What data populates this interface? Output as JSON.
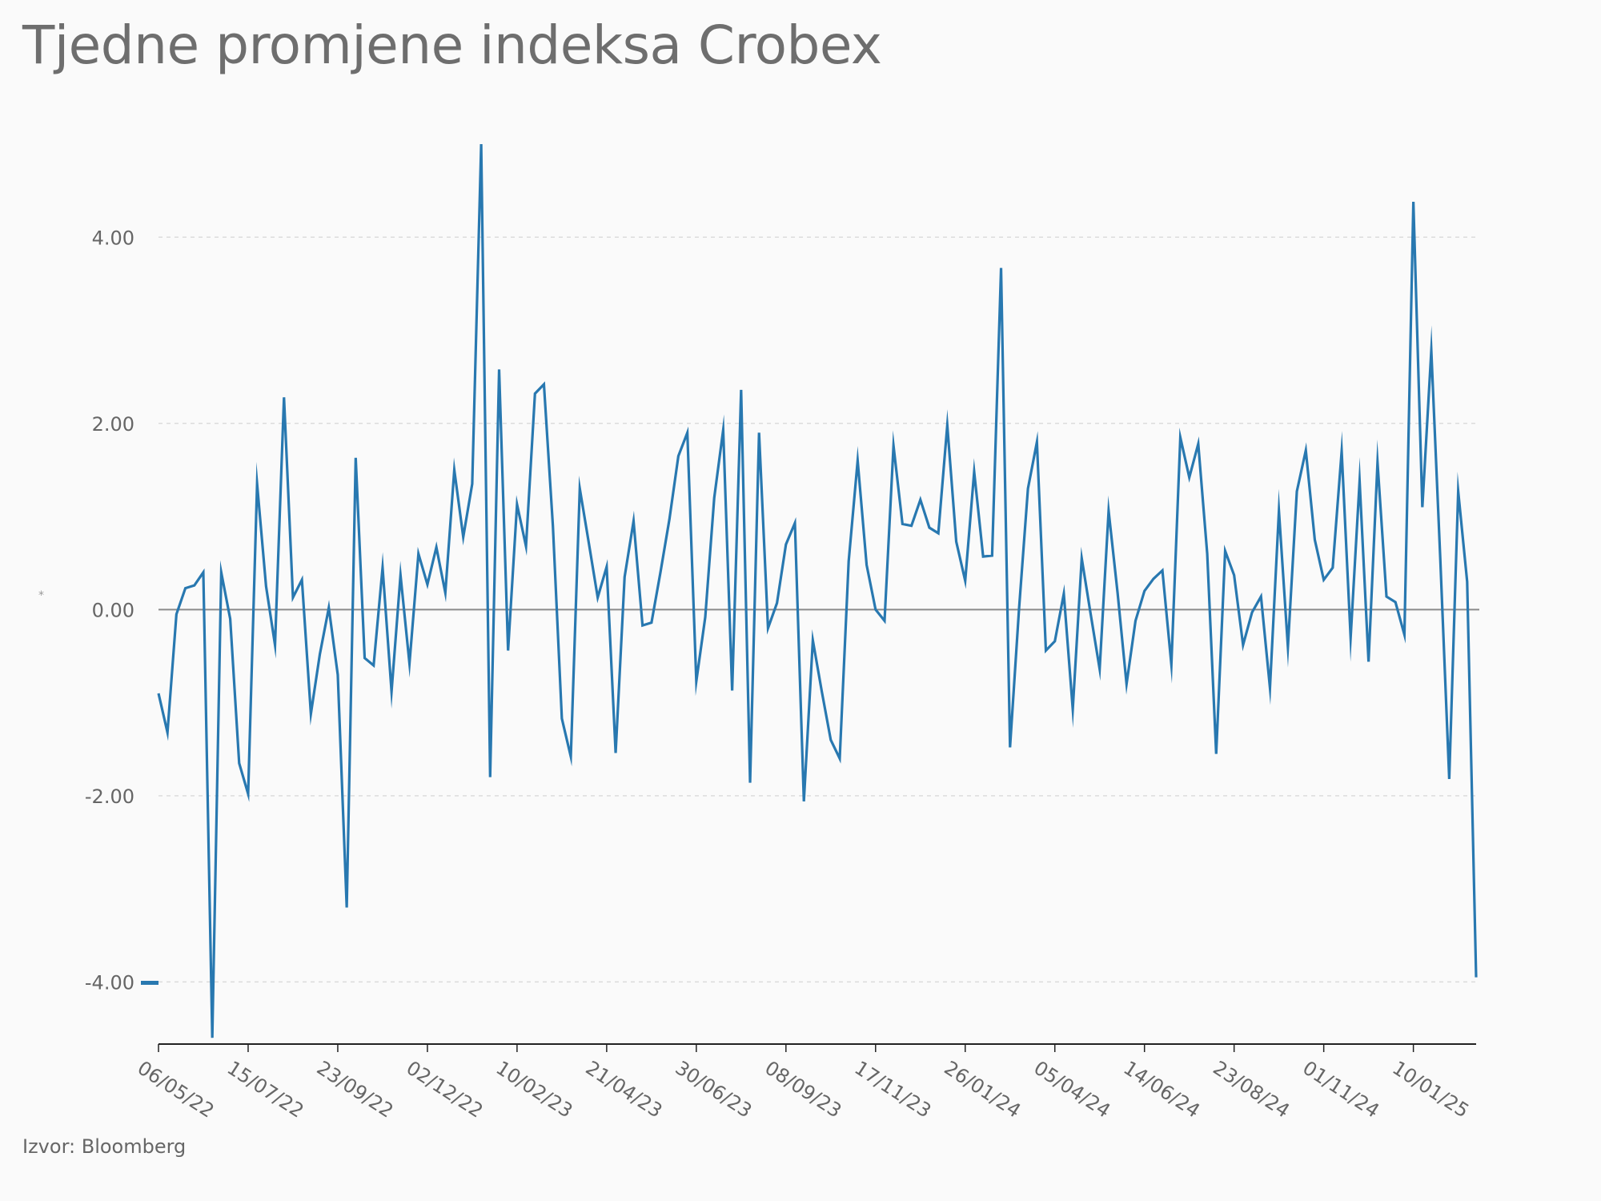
{
  "chart_data": {
    "type": "line",
    "title": "Tjedne promjene indeksa Crobex",
    "source": "Izvor: Bloomberg",
    "y_marker": "*",
    "colors": {
      "line": "#2878b0",
      "grid": "#dcdcdc",
      "zero_line": "#8a8a8a",
      "text": "#666666"
    },
    "ylim": [
      -4.65,
      5.0
    ],
    "yticks": [
      {
        "value": 4,
        "label": "4.00"
      },
      {
        "value": 2,
        "label": "2.00"
      },
      {
        "value": 0,
        "label": "0.00"
      },
      {
        "value": -2,
        "label": "-2.00"
      },
      {
        "value": -4,
        "label": "-4.00"
      }
    ],
    "xticks": [
      {
        "index": 0,
        "label": "06/05/22"
      },
      {
        "index": 10,
        "label": "15/07/22"
      },
      {
        "index": 20,
        "label": "23/09/22"
      },
      {
        "index": 30,
        "label": "02/12/22"
      },
      {
        "index": 40,
        "label": "10/02/23"
      },
      {
        "index": 50,
        "label": "21/04/23"
      },
      {
        "index": 60,
        "label": "30/06/23"
      },
      {
        "index": 70,
        "label": "08/09/23"
      },
      {
        "index": 80,
        "label": "17/11/23"
      },
      {
        "index": 90,
        "label": "26/01/24"
      },
      {
        "index": 100,
        "label": "05/04/24"
      },
      {
        "index": 110,
        "label": "14/06/24"
      },
      {
        "index": 120,
        "label": "23/08/24"
      },
      {
        "index": 130,
        "label": "01/11/24"
      },
      {
        "index": 140,
        "label": "10/01/25"
      }
    ],
    "series": [
      {
        "values": [
          -0.9,
          -1.32,
          -0.05,
          0.23,
          0.26,
          0.4,
          -4.6,
          0.4,
          -0.1,
          -1.65,
          -1.98,
          1.35,
          0.25,
          -0.38,
          2.28,
          0.13,
          0.32,
          -1.12,
          -0.48,
          0.02,
          -0.7,
          -3.2,
          1.63,
          -0.52,
          -0.6,
          0.45,
          -0.88,
          0.37,
          -0.58,
          0.6,
          0.27,
          0.67,
          0.18,
          1.5,
          0.78,
          1.35,
          5.0,
          -1.8,
          2.58,
          -0.44,
          1.13,
          0.68,
          2.32,
          2.42,
          0.9,
          -1.17,
          -1.58,
          1.3,
          0.72,
          0.13,
          0.46,
          -1.54,
          0.35,
          0.95,
          -0.17,
          -0.14,
          0.4,
          0.97,
          1.65,
          1.9,
          -0.77,
          -0.08,
          1.2,
          1.93,
          -0.87,
          2.36,
          -1.86,
          1.9,
          -0.2,
          0.07,
          0.7,
          0.93,
          -2.06,
          -0.33,
          -0.88,
          -1.4,
          -1.6,
          0.52,
          1.6,
          0.48,
          0.0,
          -0.12,
          1.76,
          0.92,
          0.9,
          1.18,
          0.88,
          0.82,
          1.98,
          0.73,
          0.31,
          1.48,
          0.57,
          0.58,
          3.67,
          -1.48,
          0.0,
          1.3,
          1.8,
          -0.44,
          -0.34,
          0.17,
          -1.07,
          0.55,
          -0.05,
          -0.64,
          1.06,
          0.18,
          -0.8,
          -0.12,
          0.2,
          0.33,
          0.42,
          -0.59,
          1.85,
          1.42,
          1.78,
          0.6,
          -1.55,
          0.63,
          0.37,
          -0.38,
          -0.03,
          0.14,
          -0.84,
          1.06,
          -0.4,
          1.27,
          1.71,
          0.75,
          0.32,
          0.45,
          1.7,
          -0.3,
          1.38,
          -0.56,
          1.58,
          0.14,
          0.08,
          -0.27,
          4.38,
          1.1,
          2.78,
          0.55,
          -1.82,
          1.27,
          0.3,
          -3.95
        ]
      }
    ]
  }
}
